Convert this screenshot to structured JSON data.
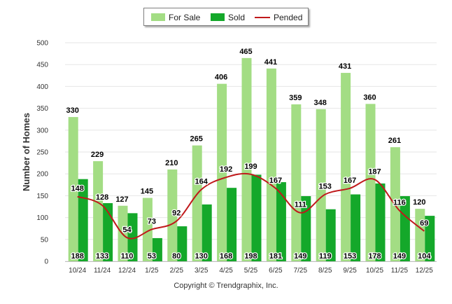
{
  "chart_data": {
    "type": "bar",
    "ylabel": "Number of Homes",
    "xlabel": "",
    "ylim": [
      0,
      500
    ],
    "yticks": [
      0,
      50,
      100,
      150,
      200,
      250,
      300,
      350,
      400,
      450,
      500
    ],
    "grid": true,
    "legend_position": "top-center",
    "categories": [
      "10/24",
      "11/24",
      "12/24",
      "1/25",
      "2/25",
      "3/25",
      "4/25",
      "5/25",
      "6/25",
      "7/25",
      "8/25",
      "9/25",
      "10/25",
      "11/25",
      "12/25"
    ],
    "series": [
      {
        "name": "For Sale",
        "kind": "bar",
        "color": "#a3dd84",
        "values": [
          330,
          229,
          127,
          145,
          210,
          265,
          406,
          465,
          441,
          359,
          348,
          431,
          360,
          261,
          120
        ]
      },
      {
        "name": "Sold",
        "kind": "bar",
        "color": "#14a82a",
        "values": [
          188,
          133,
          110,
          53,
          80,
          130,
          168,
          198,
          181,
          149,
          119,
          153,
          178,
          149,
          104
        ]
      },
      {
        "name": "Pended",
        "kind": "line",
        "color": "#c0191b",
        "values": [
          148,
          128,
          54,
          73,
          92,
          164,
          192,
          199,
          167,
          111,
          153,
          167,
          187,
          116,
          69
        ]
      }
    ]
  },
  "copyright": "Copyright © Trendgraphix, Inc."
}
